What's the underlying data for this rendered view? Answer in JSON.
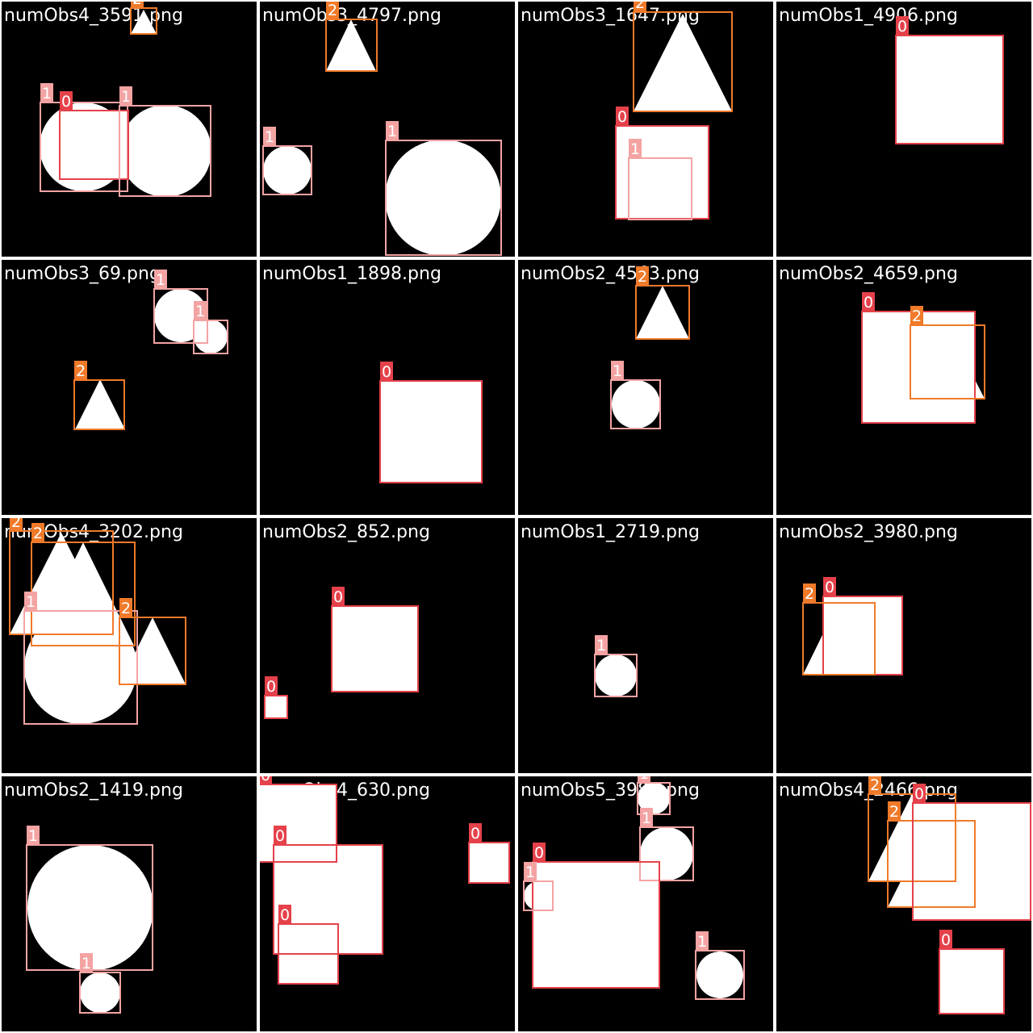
{
  "palette": {
    "background": "#000000",
    "grid_line": "#ffffff",
    "shape_fill": "#ffffff",
    "filename_text": "#ffffff",
    "class_colors": {
      "0": "#e5414a",
      "1": "#f4a3a3",
      "2": "#f07a2a"
    }
  },
  "images": [
    {
      "filename": "numObs4_3591.png",
      "labels": [
        "2",
        "1",
        "0",
        "1"
      ]
    },
    {
      "filename": "numObs3_4797.png",
      "labels": [
        "2",
        "1",
        "1"
      ]
    },
    {
      "filename": "numObs3_1647.png",
      "labels": [
        "2",
        "0",
        "1"
      ]
    },
    {
      "filename": "numObs1_4906.png",
      "labels": [
        "0"
      ]
    },
    {
      "filename": "numObs3_69.png",
      "labels": [
        "1",
        "1",
        "2"
      ]
    },
    {
      "filename": "numObs1_1898.png",
      "labels": [
        "0"
      ]
    },
    {
      "filename": "numObs2_4563.png",
      "labels": [
        "2",
        "1"
      ]
    },
    {
      "filename": "numObs2_4659.png",
      "labels": [
        "0",
        "2"
      ]
    },
    {
      "filename": "numObs4_3202.png",
      "labels": [
        "2",
        "2",
        "1",
        "2"
      ]
    },
    {
      "filename": "numObs2_852.png",
      "labels": [
        "0",
        "0"
      ]
    },
    {
      "filename": "numObs1_2719.png",
      "labels": [
        "1"
      ]
    },
    {
      "filename": "numObs2_3980.png",
      "labels": [
        "0",
        "2"
      ]
    },
    {
      "filename": "numObs2_1419.png",
      "labels": [
        "1",
        "1"
      ]
    },
    {
      "filename": "numObs4_630.png",
      "labels": [
        "0",
        "0",
        "0",
        "0"
      ]
    },
    {
      "filename": "numObs5_3989.png",
      "labels": [
        "1",
        "1",
        "0",
        "1",
        "1"
      ]
    },
    {
      "filename": "numObs4_2466.png",
      "labels": [
        "2",
        "2",
        "0",
        "0"
      ]
    }
  ]
}
